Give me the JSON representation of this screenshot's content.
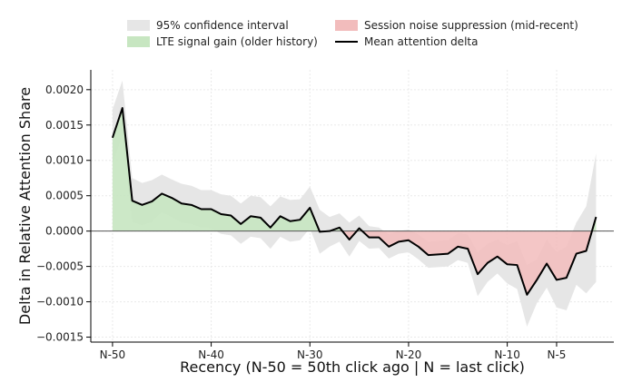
{
  "chart_data": {
    "type": "line",
    "title": "",
    "xlabel": "Recency (N-50 = 50th click ago | N = last click)",
    "ylabel": "Delta in Relative Attention Share",
    "x_ticks": [
      {
        "x": 50,
        "label": "N-50"
      },
      {
        "x": 40,
        "label": "N-40"
      },
      {
        "x": 30,
        "label": "N-30"
      },
      {
        "x": 20,
        "label": "N-20"
      },
      {
        "x": 10,
        "label": "N-10"
      },
      {
        "x": 5,
        "label": "N-5"
      }
    ],
    "y_ticks": [
      {
        "y": 0.002,
        "label": "0.0020"
      },
      {
        "y": 0.0015,
        "label": "0.0015"
      },
      {
        "y": 0.001,
        "label": "0.0010"
      },
      {
        "y": 0.0005,
        "label": "0.0005"
      },
      {
        "y": 0.0,
        "label": "0.0000"
      },
      {
        "y": -0.0005,
        "label": "−0.0005"
      },
      {
        "y": -0.001,
        "label": "−0.0010"
      },
      {
        "y": -0.0015,
        "label": "−0.0015"
      }
    ],
    "xlim": [
      52.2,
      -0.8
    ],
    "ylim": [
      -0.00157,
      0.00228
    ],
    "grid": true,
    "legend_position": "top-center",
    "legend": [
      {
        "label": "95% confidence interval",
        "kind": "patch",
        "color": "#e6e6e6"
      },
      {
        "label": "Session noise suppression (mid-recent)",
        "kind": "patch",
        "color": "#f2bcbc"
      },
      {
        "label": "LTE signal gain (older history)",
        "kind": "patch",
        "color": "#c7e6c1"
      },
      {
        "label": "Mean attention delta",
        "kind": "line",
        "color": "#000000"
      }
    ],
    "colors": {
      "ci": "#e6e6e6",
      "gain": "#c7e6c1",
      "suppression": "#f2bcbc",
      "line": "#000000",
      "zero_line": "#555555",
      "grid": "#e9e9e9"
    },
    "x": [
      50,
      49,
      48,
      47,
      46,
      45,
      44,
      43,
      42,
      41,
      40,
      39,
      38,
      37,
      36,
      35,
      34,
      33,
      32,
      31,
      30,
      29,
      28,
      27,
      26,
      25,
      24,
      23,
      22,
      21,
      20,
      19,
      18,
      17,
      16,
      15,
      14,
      13,
      12,
      11,
      10,
      9,
      8,
      7,
      6,
      5,
      4,
      3,
      2,
      1
    ],
    "series": [
      {
        "name": "Mean attention delta",
        "values": [
          0.00132,
          0.00174,
          0.00043,
          0.00037,
          0.00042,
          0.00053,
          0.00047,
          0.00039,
          0.00037,
          0.00031,
          0.00031,
          0.00024,
          0.00022,
          0.0001,
          0.00021,
          0.00019,
          5e-05,
          0.00021,
          0.00014,
          0.00016,
          0.00033,
          -1e-05,
          0.0,
          5e-05,
          -0.00012,
          4e-05,
          -9e-05,
          -9e-05,
          -0.00022,
          -0.00015,
          -0.00013,
          -0.00022,
          -0.00034,
          -0.00033,
          -0.00032,
          -0.00022,
          -0.00025,
          -0.00061,
          -0.00045,
          -0.00036,
          -0.00047,
          -0.00048,
          -0.0009,
          -0.00069,
          -0.00046,
          -0.00069,
          -0.00066,
          -0.00032,
          -0.00028,
          0.0002
        ],
        "ci_upper": [
          0.00172,
          0.00213,
          0.00075,
          0.00068,
          0.00072,
          0.0008,
          0.00073,
          0.00067,
          0.00064,
          0.00058,
          0.00058,
          0.00052,
          0.0005,
          0.00039,
          0.0005,
          0.00048,
          0.00035,
          0.00049,
          0.00044,
          0.00045,
          0.00063,
          0.0003,
          0.0002,
          0.00025,
          0.00012,
          0.00022,
          7e-05,
          5e-05,
          -5e-05,
          0.0,
          2e-05,
          -5e-05,
          -0.00015,
          -0.00014,
          -0.00013,
          -3e-05,
          -5e-05,
          -0.0003,
          -0.00018,
          -0.00012,
          -0.0002,
          -0.00014,
          -0.00048,
          -0.0004,
          -0.00012,
          -0.0003,
          -0.00022,
          0.00012,
          0.00035,
          0.0011
        ],
        "ci_lower": [
          0.00096,
          0.00135,
          0.00013,
          8e-05,
          0.00013,
          0.00027,
          0.0002,
          0.00012,
          0.0001,
          5e-05,
          4e-05,
          -4e-05,
          -6e-05,
          -0.00018,
          -8e-05,
          -0.0001,
          -0.00025,
          -8e-05,
          -0.00015,
          -0.00013,
          4e-05,
          -0.00032,
          -0.00022,
          -0.00015,
          -0.00036,
          -0.00014,
          -0.00025,
          -0.00024,
          -0.00039,
          -0.00032,
          -0.0003,
          -0.0004,
          -0.00052,
          -0.00051,
          -0.0005,
          -0.00041,
          -0.00045,
          -0.00092,
          -0.00072,
          -0.0006,
          -0.00074,
          -0.00082,
          -0.00135,
          -0.00102,
          -0.0008,
          -0.00108,
          -0.00112,
          -0.00076,
          -0.00088,
          -0.00072
        ]
      }
    ]
  }
}
